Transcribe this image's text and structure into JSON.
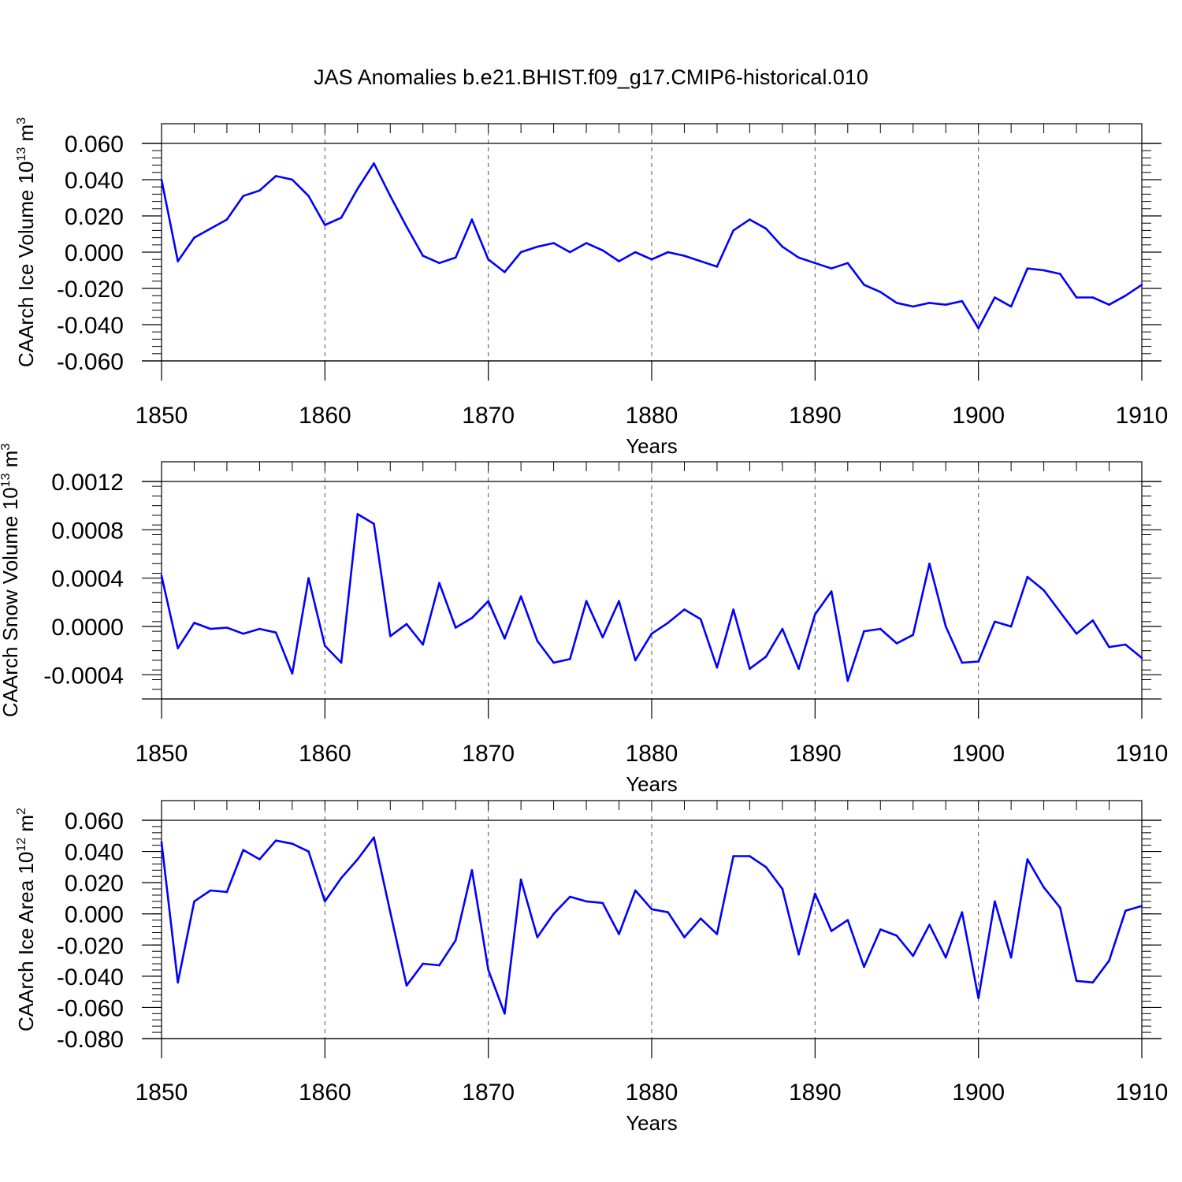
{
  "title": "JAS Anomalies b.e21.BHIST.f09_g17.CMIP6-historical.010",
  "colors": {
    "line": "#0000ff",
    "axis": "#000000",
    "grid": "#555555"
  },
  "chart_data": [
    {
      "type": "line",
      "name": "ice-volume",
      "ylabel_main": "CAArch Ice Volume 10",
      "ylabel_exp": "13",
      "ylabel_unit": "m",
      "ylabel_unit_exp": "3",
      "xlabel": "Years",
      "xlim": [
        1850,
        1910
      ],
      "ylim": [
        -0.06,
        0.06
      ],
      "yticks": [
        -0.06,
        -0.04,
        -0.02,
        0.0,
        0.02,
        0.04,
        0.06
      ],
      "ytick_labels": [
        "-0.060",
        "-0.040",
        "-0.020",
        "0.000",
        "0.020",
        "0.040",
        "0.060"
      ],
      "xticks": [
        1850,
        1860,
        1870,
        1880,
        1890,
        1900,
        1910
      ],
      "xtick_labels": [
        "1850",
        "1860",
        "1870",
        "1880",
        "1890",
        "1900",
        "1910"
      ],
      "grid_x": [
        1860,
        1870,
        1880,
        1890,
        1900
      ],
      "values": [
        0.04,
        -0.005,
        0.008,
        0.013,
        0.018,
        0.031,
        0.034,
        0.042,
        0.04,
        0.031,
        0.015,
        0.019,
        0.035,
        0.049,
        0.031,
        0.014,
        -0.002,
        -0.006,
        -0.003,
        0.018,
        -0.004,
        -0.011,
        0.0,
        0.003,
        0.005,
        0.0,
        0.005,
        0.001,
        -0.005,
        0.0,
        -0.004,
        0.0,
        -0.002,
        -0.005,
        -0.008,
        0.012,
        0.018,
        0.013,
        0.003,
        -0.003,
        -0.006,
        -0.009,
        -0.006,
        -0.018,
        -0.022,
        -0.028,
        -0.03,
        -0.028,
        -0.029,
        -0.027,
        -0.042,
        -0.025,
        -0.03,
        -0.009,
        -0.01,
        -0.012,
        -0.025,
        -0.025,
        -0.029,
        -0.024,
        -0.018
      ]
    },
    {
      "type": "line",
      "name": "snow-volume",
      "ylabel_main": "CAArch Snow Volume 10",
      "ylabel_exp": "13",
      "ylabel_unit": "m",
      "ylabel_unit_exp": "3",
      "xlabel": "Years",
      "xlim": [
        1850,
        1910
      ],
      "ylim": [
        -0.0006,
        0.0012
      ],
      "yticks": [
        -0.0004,
        0.0,
        0.0004,
        0.0008,
        0.0012
      ],
      "ytick_labels": [
        "-0.0004",
        "0.0000",
        "0.0004",
        "0.0008",
        "0.0012"
      ],
      "xticks": [
        1850,
        1860,
        1870,
        1880,
        1890,
        1900,
        1910
      ],
      "xtick_labels": [
        "1850",
        "1860",
        "1870",
        "1880",
        "1890",
        "1900",
        "1910"
      ],
      "grid_x": [
        1860,
        1870,
        1880,
        1890,
        1900
      ],
      "values": [
        0.00042,
        -0.00018,
        3e-05,
        -2e-05,
        -1e-05,
        -6e-05,
        -2e-05,
        -5e-05,
        -0.00039,
        0.0004,
        -0.00016,
        -0.0003,
        0.00093,
        0.00085,
        -8e-05,
        2e-05,
        -0.00015,
        0.00036,
        -1e-05,
        7e-05,
        0.00021,
        -0.0001,
        0.00025,
        -0.00012,
        -0.0003,
        -0.00027,
        0.00021,
        -9e-05,
        0.00021,
        -0.00028,
        -6e-05,
        3e-05,
        0.00014,
        6e-05,
        -0.00034,
        0.00014,
        -0.00035,
        -0.00025,
        -2e-05,
        -0.00035,
        0.0001,
        0.00029,
        -0.00045,
        -4e-05,
        -2e-05,
        -0.00014,
        -7e-05,
        0.00052,
        0.0,
        -0.0003,
        -0.00029,
        4e-05,
        0.0,
        0.00041,
        0.0003,
        0.00012,
        -6e-05,
        5e-05,
        -0.00017,
        -0.00015,
        -0.00026
      ]
    },
    {
      "type": "line",
      "name": "ice-area",
      "ylabel_main": "CAArch Ice Area 10",
      "ylabel_exp": "12",
      "ylabel_unit": "m",
      "ylabel_unit_exp": "2",
      "xlabel": "Years",
      "xlim": [
        1850,
        1910
      ],
      "ylim": [
        -0.08,
        0.06
      ],
      "yticks": [
        -0.08,
        -0.06,
        -0.04,
        -0.02,
        0.0,
        0.02,
        0.04,
        0.06
      ],
      "ytick_labels": [
        "-0.080",
        "-0.060",
        "-0.040",
        "-0.020",
        "0.000",
        "0.020",
        "0.040",
        "0.060"
      ],
      "xticks": [
        1850,
        1860,
        1870,
        1880,
        1890,
        1900,
        1910
      ],
      "xtick_labels": [
        "1850",
        "1860",
        "1870",
        "1880",
        "1890",
        "1900",
        "1910"
      ],
      "grid_x": [
        1860,
        1870,
        1880,
        1890,
        1900
      ],
      "values": [
        0.046,
        -0.044,
        0.008,
        0.015,
        0.014,
        0.041,
        0.035,
        0.047,
        0.045,
        0.04,
        0.008,
        0.023,
        0.035,
        0.049,
        0.001,
        -0.046,
        -0.032,
        -0.033,
        -0.017,
        0.028,
        -0.036,
        -0.064,
        0.022,
        -0.015,
        0.0,
        0.011,
        0.008,
        0.007,
        -0.013,
        0.015,
        0.003,
        0.001,
        -0.015,
        -0.003,
        -0.013,
        0.037,
        0.037,
        0.03,
        0.016,
        -0.026,
        0.013,
        -0.011,
        -0.004,
        -0.034,
        -0.01,
        -0.014,
        -0.027,
        -0.007,
        -0.028,
        0.001,
        -0.054,
        0.008,
        -0.028,
        0.035,
        0.017,
        0.004,
        -0.043,
        -0.044,
        -0.03,
        0.002,
        0.005
      ]
    }
  ]
}
